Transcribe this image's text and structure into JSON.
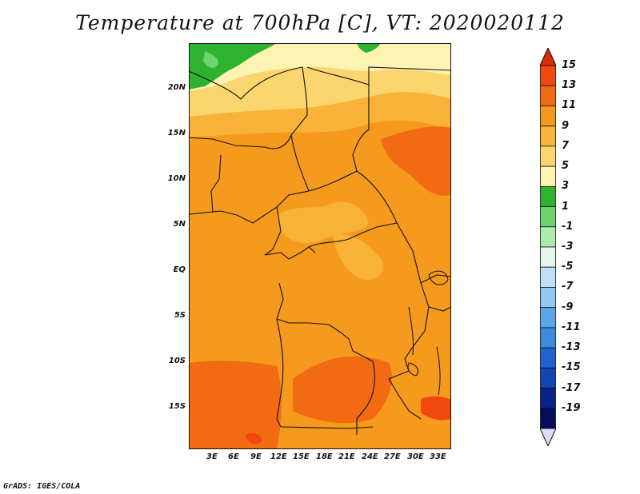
{
  "title": "Temperature at 700hPa [C], VT: 2020020112",
  "footer": "GrADS: IGES/COLA",
  "map": {
    "lat_labels": [
      "20N",
      "15N",
      "10N",
      "5N",
      "EQ",
      "5S",
      "10S",
      "15S"
    ],
    "lon_labels": [
      "3E",
      "6E",
      "9E",
      "12E",
      "15E",
      "18E",
      "21E",
      "24E",
      "27E",
      "30E",
      "33E"
    ]
  },
  "colorbar": {
    "labels": [
      "15",
      "13",
      "11",
      "9",
      "7",
      "5",
      "3",
      "1",
      "-1",
      "-3",
      "-5",
      "-7",
      "-9",
      "-11",
      "-13",
      "-15",
      "-17",
      "-19"
    ],
    "colors": [
      "#d92b0a",
      "#f0480f",
      "#f26a12",
      "#f59a1c",
      "#f7b237",
      "#fbd56e",
      "#fdf4b4",
      "#2fb22f",
      "#6dd46d",
      "#aeeaae",
      "#e4f7ec",
      "#bfe0f6",
      "#93c8f0",
      "#5aa6e8",
      "#3a8ae0",
      "#2161d0",
      "#1244b2",
      "#0a238a",
      "#060c5c",
      "#dcdaf4"
    ]
  }
}
